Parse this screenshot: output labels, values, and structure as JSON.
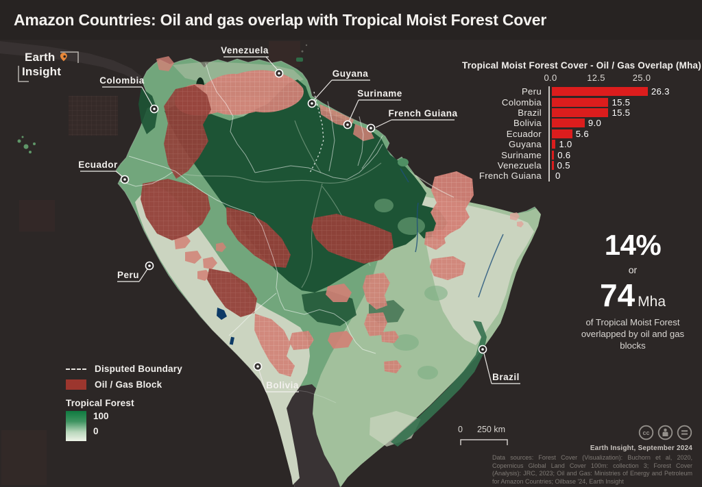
{
  "page": {
    "title": "Amazon Countries: Oil and gas overlap with Tropical Moist Forest Cover"
  },
  "logo": {
    "line1": "Earth",
    "line2": "Insight"
  },
  "chart_data": {
    "type": "bar",
    "orientation": "horizontal",
    "title": "Tropical Moist Forest Cover - Oil / Gas Overlap (Mha)",
    "categories": [
      "Peru",
      "Colombia",
      "Brazil",
      "Bolivia",
      "Ecuador",
      "Guyana",
      "Suriname",
      "Venezuela",
      "French Guiana"
    ],
    "values": [
      26.3,
      15.5,
      15.5,
      9.0,
      5.6,
      1.0,
      0.6,
      0.5,
      0
    ],
    "value_labels": [
      "26.3",
      "15.5",
      "15.5",
      "9.0",
      "5.6",
      "1.0",
      "0.6",
      "0.5",
      "0"
    ],
    "xticks": [
      0,
      12.5,
      25
    ],
    "xtick_labels": [
      "0.0",
      "12.5",
      "25.0"
    ],
    "xlim": [
      0,
      27.5
    ],
    "bar_color": "#dc1d1d",
    "grid": false,
    "legend_position": "none"
  },
  "stat": {
    "percent": "14%",
    "or": "or",
    "value": "74",
    "unit": "Mha",
    "caption": "of Tropical Moist Forest overlapped by oil and gas blocks"
  },
  "legend": {
    "disputed": "Disputed Boundary",
    "oil_gas": "Oil / Gas Block",
    "forest_title": "Tropical Forest",
    "forest_max": "100",
    "forest_min": "0"
  },
  "scalebar": {
    "zero": "0",
    "distance": "250 km"
  },
  "map": {
    "country_labels": [
      "Venezuela",
      "Guyana",
      "Suriname",
      "French Guiana",
      "Colombia",
      "Ecuador",
      "Peru",
      "Bolivia",
      "Brazil"
    ]
  },
  "attribution": {
    "credit": "Earth Insight,  September 2024",
    "sources": "Data sources: Forest Cover (Visualization): Buchorn et al, 2020, Copernicus Global Land Cover 100m: collection 3; Forest Cover (Analysis): JRC, 2023; Oil and Gas: Ministries of Energy and Petroleum for Amazon Countries; Oilbase '24, Earth Insight"
  },
  "colors": {
    "bar_red": "#dc1d1d",
    "oil_block_salmon": "#d28176",
    "oil_block_dark": "#93413a",
    "legend_oil_swatch": "#9c362e",
    "forest_dark": "#1d5435",
    "forest_pale": "#eef3e7",
    "background": "#2c2827"
  }
}
